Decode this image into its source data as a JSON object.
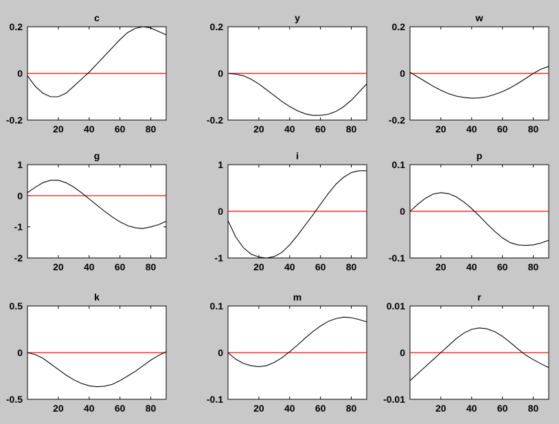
{
  "figure": {
    "background_color": "#c8c8c8",
    "axes_color": "#ffffff",
    "zero_line_color": "#ff0000",
    "curve_color": "#000000"
  },
  "chart_data": [
    {
      "type": "line",
      "title": "c",
      "xlim": [
        0,
        90
      ],
      "ylim": [
        -0.2,
        0.2
      ],
      "xticks": [
        20,
        40,
        60,
        80
      ],
      "yticks": [
        -0.2,
        0,
        0.2
      ],
      "xtick_labels": [
        "20",
        "40",
        "60",
        "80"
      ],
      "ytick_labels": [
        "-0.2",
        "0",
        "0.2"
      ],
      "reference_line": 0,
      "series": [
        {
          "x": [
            0,
            5,
            10,
            15,
            20,
            25,
            30,
            35,
            40,
            45,
            50,
            55,
            60,
            65,
            70,
            75,
            80,
            85,
            90
          ],
          "y": [
            -0.01,
            -0.055,
            -0.085,
            -0.1,
            -0.1,
            -0.085,
            -0.055,
            -0.025,
            0.005,
            0.04,
            0.075,
            0.11,
            0.145,
            0.175,
            0.193,
            0.2,
            0.195,
            0.18,
            0.165
          ]
        }
      ]
    },
    {
      "type": "line",
      "title": "y",
      "xlim": [
        0,
        90
      ],
      "ylim": [
        -0.2,
        0.2
      ],
      "xticks": [
        20,
        40,
        60,
        80
      ],
      "yticks": [
        -0.2,
        0,
        0.2
      ],
      "xtick_labels": [
        "20",
        "40",
        "60",
        "80"
      ],
      "ytick_labels": [
        "-0.2",
        "0",
        "0.2"
      ],
      "reference_line": 0,
      "series": [
        {
          "x": [
            0,
            5,
            10,
            15,
            20,
            25,
            30,
            35,
            40,
            45,
            50,
            55,
            60,
            65,
            70,
            75,
            80,
            85,
            90
          ],
          "y": [
            0,
            -0.003,
            -0.01,
            -0.025,
            -0.045,
            -0.07,
            -0.095,
            -0.12,
            -0.142,
            -0.16,
            -0.173,
            -0.18,
            -0.18,
            -0.175,
            -0.163,
            -0.143,
            -0.115,
            -0.08,
            -0.045
          ]
        }
      ]
    },
    {
      "type": "line",
      "title": "w",
      "xlim": [
        0,
        90
      ],
      "ylim": [
        -0.2,
        0.2
      ],
      "xticks": [
        20,
        40,
        60,
        80
      ],
      "yticks": [
        -0.2,
        0,
        0.2
      ],
      "xtick_labels": [
        "20",
        "40",
        "60",
        "80"
      ],
      "ytick_labels": [
        "-0.2",
        "0",
        "0.2"
      ],
      "reference_line": 0,
      "series": [
        {
          "x": [
            0,
            5,
            10,
            15,
            20,
            25,
            30,
            35,
            40,
            45,
            50,
            55,
            60,
            65,
            70,
            75,
            80,
            85,
            90
          ],
          "y": [
            0.005,
            -0.015,
            -0.035,
            -0.055,
            -0.072,
            -0.087,
            -0.097,
            -0.103,
            -0.106,
            -0.105,
            -0.1,
            -0.09,
            -0.078,
            -0.062,
            -0.043,
            -0.022,
            0,
            0.018,
            0.03
          ]
        }
      ]
    },
    {
      "type": "line",
      "title": "g",
      "xlim": [
        0,
        90
      ],
      "ylim": [
        -2,
        1
      ],
      "xticks": [
        20,
        40,
        60,
        80
      ],
      "yticks": [
        -2,
        -1,
        0,
        1
      ],
      "xtick_labels": [
        "20",
        "40",
        "60",
        "80"
      ],
      "ytick_labels": [
        "-2",
        "-1",
        "0",
        "1"
      ],
      "reference_line": 0,
      "series": [
        {
          "x": [
            0,
            5,
            10,
            15,
            20,
            25,
            30,
            35,
            40,
            45,
            50,
            55,
            60,
            65,
            70,
            75,
            80,
            85,
            90
          ],
          "y": [
            0.1,
            0.27,
            0.42,
            0.5,
            0.5,
            0.42,
            0.28,
            0.1,
            -0.1,
            -0.3,
            -0.5,
            -0.68,
            -0.84,
            -0.96,
            -1.03,
            -1.05,
            -1.0,
            -0.93,
            -0.82
          ]
        }
      ]
    },
    {
      "type": "line",
      "title": "i",
      "xlim": [
        0,
        90
      ],
      "ylim": [
        -1,
        1
      ],
      "xticks": [
        20,
        40,
        60,
        80
      ],
      "yticks": [
        -1,
        0,
        1
      ],
      "xtick_labels": [
        "20",
        "40",
        "60",
        "80"
      ],
      "ytick_labels": [
        "-1",
        "0",
        "1"
      ],
      "reference_line": 0,
      "series": [
        {
          "x": [
            0,
            5,
            10,
            15,
            20,
            25,
            30,
            35,
            40,
            45,
            50,
            55,
            60,
            65,
            70,
            75,
            80,
            85,
            90
          ],
          "y": [
            -0.2,
            -0.55,
            -0.78,
            -0.92,
            -0.98,
            -1.0,
            -0.97,
            -0.88,
            -0.72,
            -0.52,
            -0.3,
            -0.08,
            0.15,
            0.38,
            0.58,
            0.73,
            0.83,
            0.87,
            0.87
          ]
        }
      ]
    },
    {
      "type": "line",
      "title": "p",
      "xlim": [
        0,
        90
      ],
      "ylim": [
        -0.1,
        0.1
      ],
      "xticks": [
        20,
        40,
        60,
        80
      ],
      "yticks": [
        -0.1,
        0,
        0.1
      ],
      "xtick_labels": [
        "20",
        "40",
        "60",
        "80"
      ],
      "ytick_labels": [
        "-0.1",
        "0",
        "0.1"
      ],
      "reference_line": 0,
      "series": [
        {
          "x": [
            0,
            5,
            10,
            15,
            20,
            25,
            30,
            35,
            40,
            45,
            50,
            55,
            60,
            65,
            70,
            75,
            80,
            85,
            90
          ],
          "y": [
            0,
            0.015,
            0.028,
            0.037,
            0.04,
            0.038,
            0.031,
            0.02,
            0.006,
            -0.01,
            -0.027,
            -0.043,
            -0.057,
            -0.067,
            -0.072,
            -0.073,
            -0.072,
            -0.068,
            -0.062
          ]
        }
      ]
    },
    {
      "type": "line",
      "title": "k",
      "xlim": [
        0,
        90
      ],
      "ylim": [
        -0.5,
        0.5
      ],
      "xticks": [
        20,
        40,
        60,
        80
      ],
      "yticks": [
        -0.5,
        0,
        0.5
      ],
      "xtick_labels": [
        "20",
        "40",
        "60",
        "80"
      ],
      "ytick_labels": [
        "-0.5",
        "0",
        "0.5"
      ],
      "reference_line": 0,
      "series": [
        {
          "x": [
            0,
            5,
            10,
            15,
            20,
            25,
            30,
            35,
            40,
            45,
            50,
            55,
            60,
            65,
            70,
            75,
            80,
            85,
            90
          ],
          "y": [
            0,
            -0.02,
            -0.06,
            -0.12,
            -0.18,
            -0.24,
            -0.29,
            -0.33,
            -0.355,
            -0.365,
            -0.36,
            -0.34,
            -0.3,
            -0.25,
            -0.2,
            -0.14,
            -0.08,
            -0.03,
            0.01
          ]
        }
      ]
    },
    {
      "type": "line",
      "title": "m",
      "xlim": [
        0,
        90
      ],
      "ylim": [
        -0.1,
        0.1
      ],
      "xticks": [
        20,
        40,
        60,
        80
      ],
      "yticks": [
        -0.1,
        0,
        0.1
      ],
      "xtick_labels": [
        "20",
        "40",
        "60",
        "80"
      ],
      "ytick_labels": [
        "-0.1",
        "0",
        "0.1"
      ],
      "reference_line": 0,
      "series": [
        {
          "x": [
            0,
            5,
            10,
            15,
            20,
            25,
            30,
            35,
            40,
            45,
            50,
            55,
            60,
            65,
            70,
            75,
            80,
            85,
            90
          ],
          "y": [
            0,
            -0.014,
            -0.023,
            -0.028,
            -0.03,
            -0.028,
            -0.021,
            -0.011,
            0.002,
            0.016,
            0.031,
            0.045,
            0.057,
            0.067,
            0.073,
            0.076,
            0.075,
            0.071,
            0.066
          ]
        }
      ]
    },
    {
      "type": "line",
      "title": "r",
      "xlim": [
        0,
        90
      ],
      "ylim": [
        -0.01,
        0.01
      ],
      "xticks": [
        20,
        40,
        60,
        80
      ],
      "yticks": [
        -0.01,
        0,
        0.01
      ],
      "xtick_labels": [
        "20",
        "40",
        "60",
        "80"
      ],
      "ytick_labels": [
        "-0.01",
        "0",
        "0.01"
      ],
      "reference_line": 0,
      "series": [
        {
          "x": [
            0,
            5,
            10,
            15,
            20,
            25,
            30,
            35,
            40,
            45,
            50,
            55,
            60,
            65,
            70,
            75,
            80,
            85,
            90
          ],
          "y": [
            -0.006,
            -0.0045,
            -0.003,
            -0.0015,
            0,
            0.0015,
            0.003,
            0.0042,
            0.005,
            0.0053,
            0.0051,
            0.0045,
            0.0035,
            0.0022,
            0.0008,
            -0.0005,
            -0.0015,
            -0.0024,
            -0.0032
          ]
        }
      ]
    }
  ]
}
